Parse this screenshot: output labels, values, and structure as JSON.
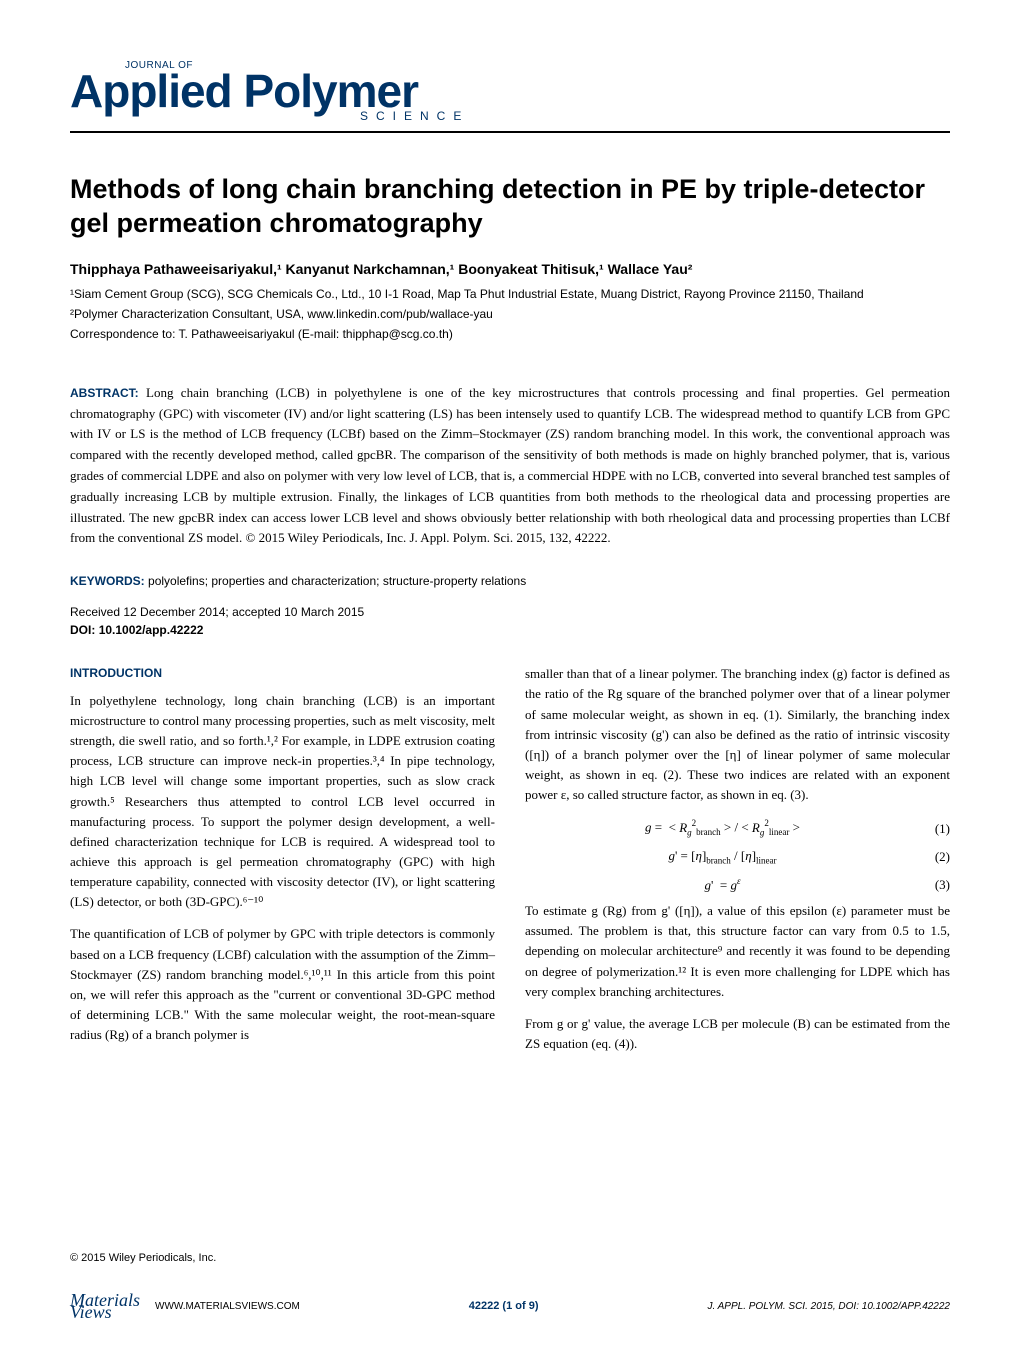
{
  "journal": {
    "prefix": "JOURNAL OF",
    "name": "Applied Polymer",
    "subtitle": "SCIENCE"
  },
  "article": {
    "title": "Methods of long chain branching detection in PE by triple-detector gel permeation chromatography",
    "authors_line": "Thipphaya Pathaweeisariyakul,¹ Kanyanut Narkchamnan,¹ Boonyakeat Thitisuk,¹ Wallace Yau²",
    "affiliations": [
      "¹Siam Cement Group (SCG), SCG Chemicals Co., Ltd., 10 I-1 Road, Map Ta Phut Industrial Estate, Muang District, Rayong Province 21150, Thailand",
      "²Polymer Characterization Consultant, USA, www.linkedin.com/pub/wallace-yau"
    ],
    "correspondence": "Correspondence to: T. Pathaweeisariyakul (E-mail: thipphap@scg.co.th)"
  },
  "abstract": {
    "label": "ABSTRACT:",
    "text": "Long chain branching (LCB) in polyethylene is one of the key microstructures that controls processing and final properties. Gel permeation chromatography (GPC) with viscometer (IV) and/or light scattering (LS) has been intensely used to quantify LCB. The widespread method to quantify LCB from GPC with IV or LS is the method of LCB frequency (LCBf) based on the Zimm–Stockmayer (ZS) random branching model. In this work, the conventional approach was compared with the recently developed method, called gpcBR. The comparison of the sensitivity of both methods is made on highly branched polymer, that is, various grades of commercial LDPE and also on polymer with very low level of LCB, that is, a commercial HDPE with no LCB, converted into several branched test samples of gradually increasing LCB by multiple extrusion. Finally, the linkages of LCB quantities from both methods to the rheological data and processing properties are illustrated. The new gpcBR index can access lower LCB level and shows obviously better relationship with both rheological data and processing properties than LCBf from the conventional ZS model.",
    "copyright": "© 2015 Wiley Periodicals, Inc. J. Appl. Polym. Sci. 2015, 132, 42222."
  },
  "keywords": {
    "label": "KEYWORDS:",
    "text": "polyolefins; properties and characterization; structure-property relations"
  },
  "dates": {
    "received": "Received 12 December 2014; accepted 10 March 2015",
    "doi_label": "DOI:",
    "doi": "10.1002/app.42222"
  },
  "body": {
    "intro_heading": "INTRODUCTION",
    "left_p1": "In polyethylene technology, long chain branching (LCB) is an important microstructure to control many processing properties, such as melt viscosity, melt strength, die swell ratio, and so forth.¹,² For example, in LDPE extrusion coating process, LCB structure can improve neck-in properties.³,⁴ In pipe technology, high LCB level will change some important properties, such as slow crack growth.⁵ Researchers thus attempted to control LCB level occurred in manufacturing process. To support the polymer design development, a well-defined characterization technique for LCB is required. A widespread tool to achieve this approach is gel permeation chromatography (GPC) with high temperature capability, connected with viscosity detector (IV), or light scattering (LS) detector, or both (3D-GPC).⁶⁻¹⁰",
    "left_p2": "The quantification of LCB of polymer by GPC with triple detectors is commonly based on a LCB frequency (LCBf) calculation with the assumption of the Zimm–Stockmayer (ZS) random branching model.⁶,¹⁰,¹¹ In this article from this point on, we will refer this approach as the \"current or conventional 3D-GPC method of determining LCB.\" With the same molecular weight, the root-mean-square radius (Rg) of a branch polymer is",
    "right_p1": "smaller than that of a linear polymer. The branching index (g) factor is defined as the ratio of the Rg square of the branched polymer over that of a linear polymer of same molecular weight, as shown in eq. (1). Similarly, the branching index from intrinsic viscosity (g') can also be defined as the ratio of intrinsic viscosity ([η]) of a branch polymer over the [η] of linear polymer of same molecular weight, as shown in eq. (2). These two indices are related with an exponent power ε, so called structure factor, as shown in eq. (3).",
    "right_p2": "To estimate g (Rg) from g' ([η]), a value of this epsilon (ε) parameter must be assumed. The problem is that, this structure factor can vary from 0.5 to 1.5, depending on molecular architecture⁹ and recently it was found to be depending on degree of polymerization.¹² It is even more challenging for LDPE which has very complex branching architectures.",
    "right_p3": "From g or g' value, the average LCB per molecule (B) can be estimated from the ZS equation (eq. (4))."
  },
  "equations": {
    "eq1": "g = < Rg²branch > / < Rg²linear >",
    "eq1_num": "(1)",
    "eq2": "g' = [η]branch / [η]linear",
    "eq2_num": "(2)",
    "eq3": "g' = gᵉ",
    "eq3_num": "(3)"
  },
  "footer": {
    "copyright": "© 2015 Wiley Periodicals, Inc.",
    "logo_line1": "Materials",
    "logo_line2": "Views",
    "url": "WWW.MATERIALSVIEWS.COM",
    "page": "42222 (1 of 9)",
    "citation": "J. APPL. POLYM. SCI. 2015, DOI: 10.1002/APP.42222"
  },
  "colors": {
    "brand": "#003366",
    "text": "#000000",
    "background": "#ffffff"
  }
}
